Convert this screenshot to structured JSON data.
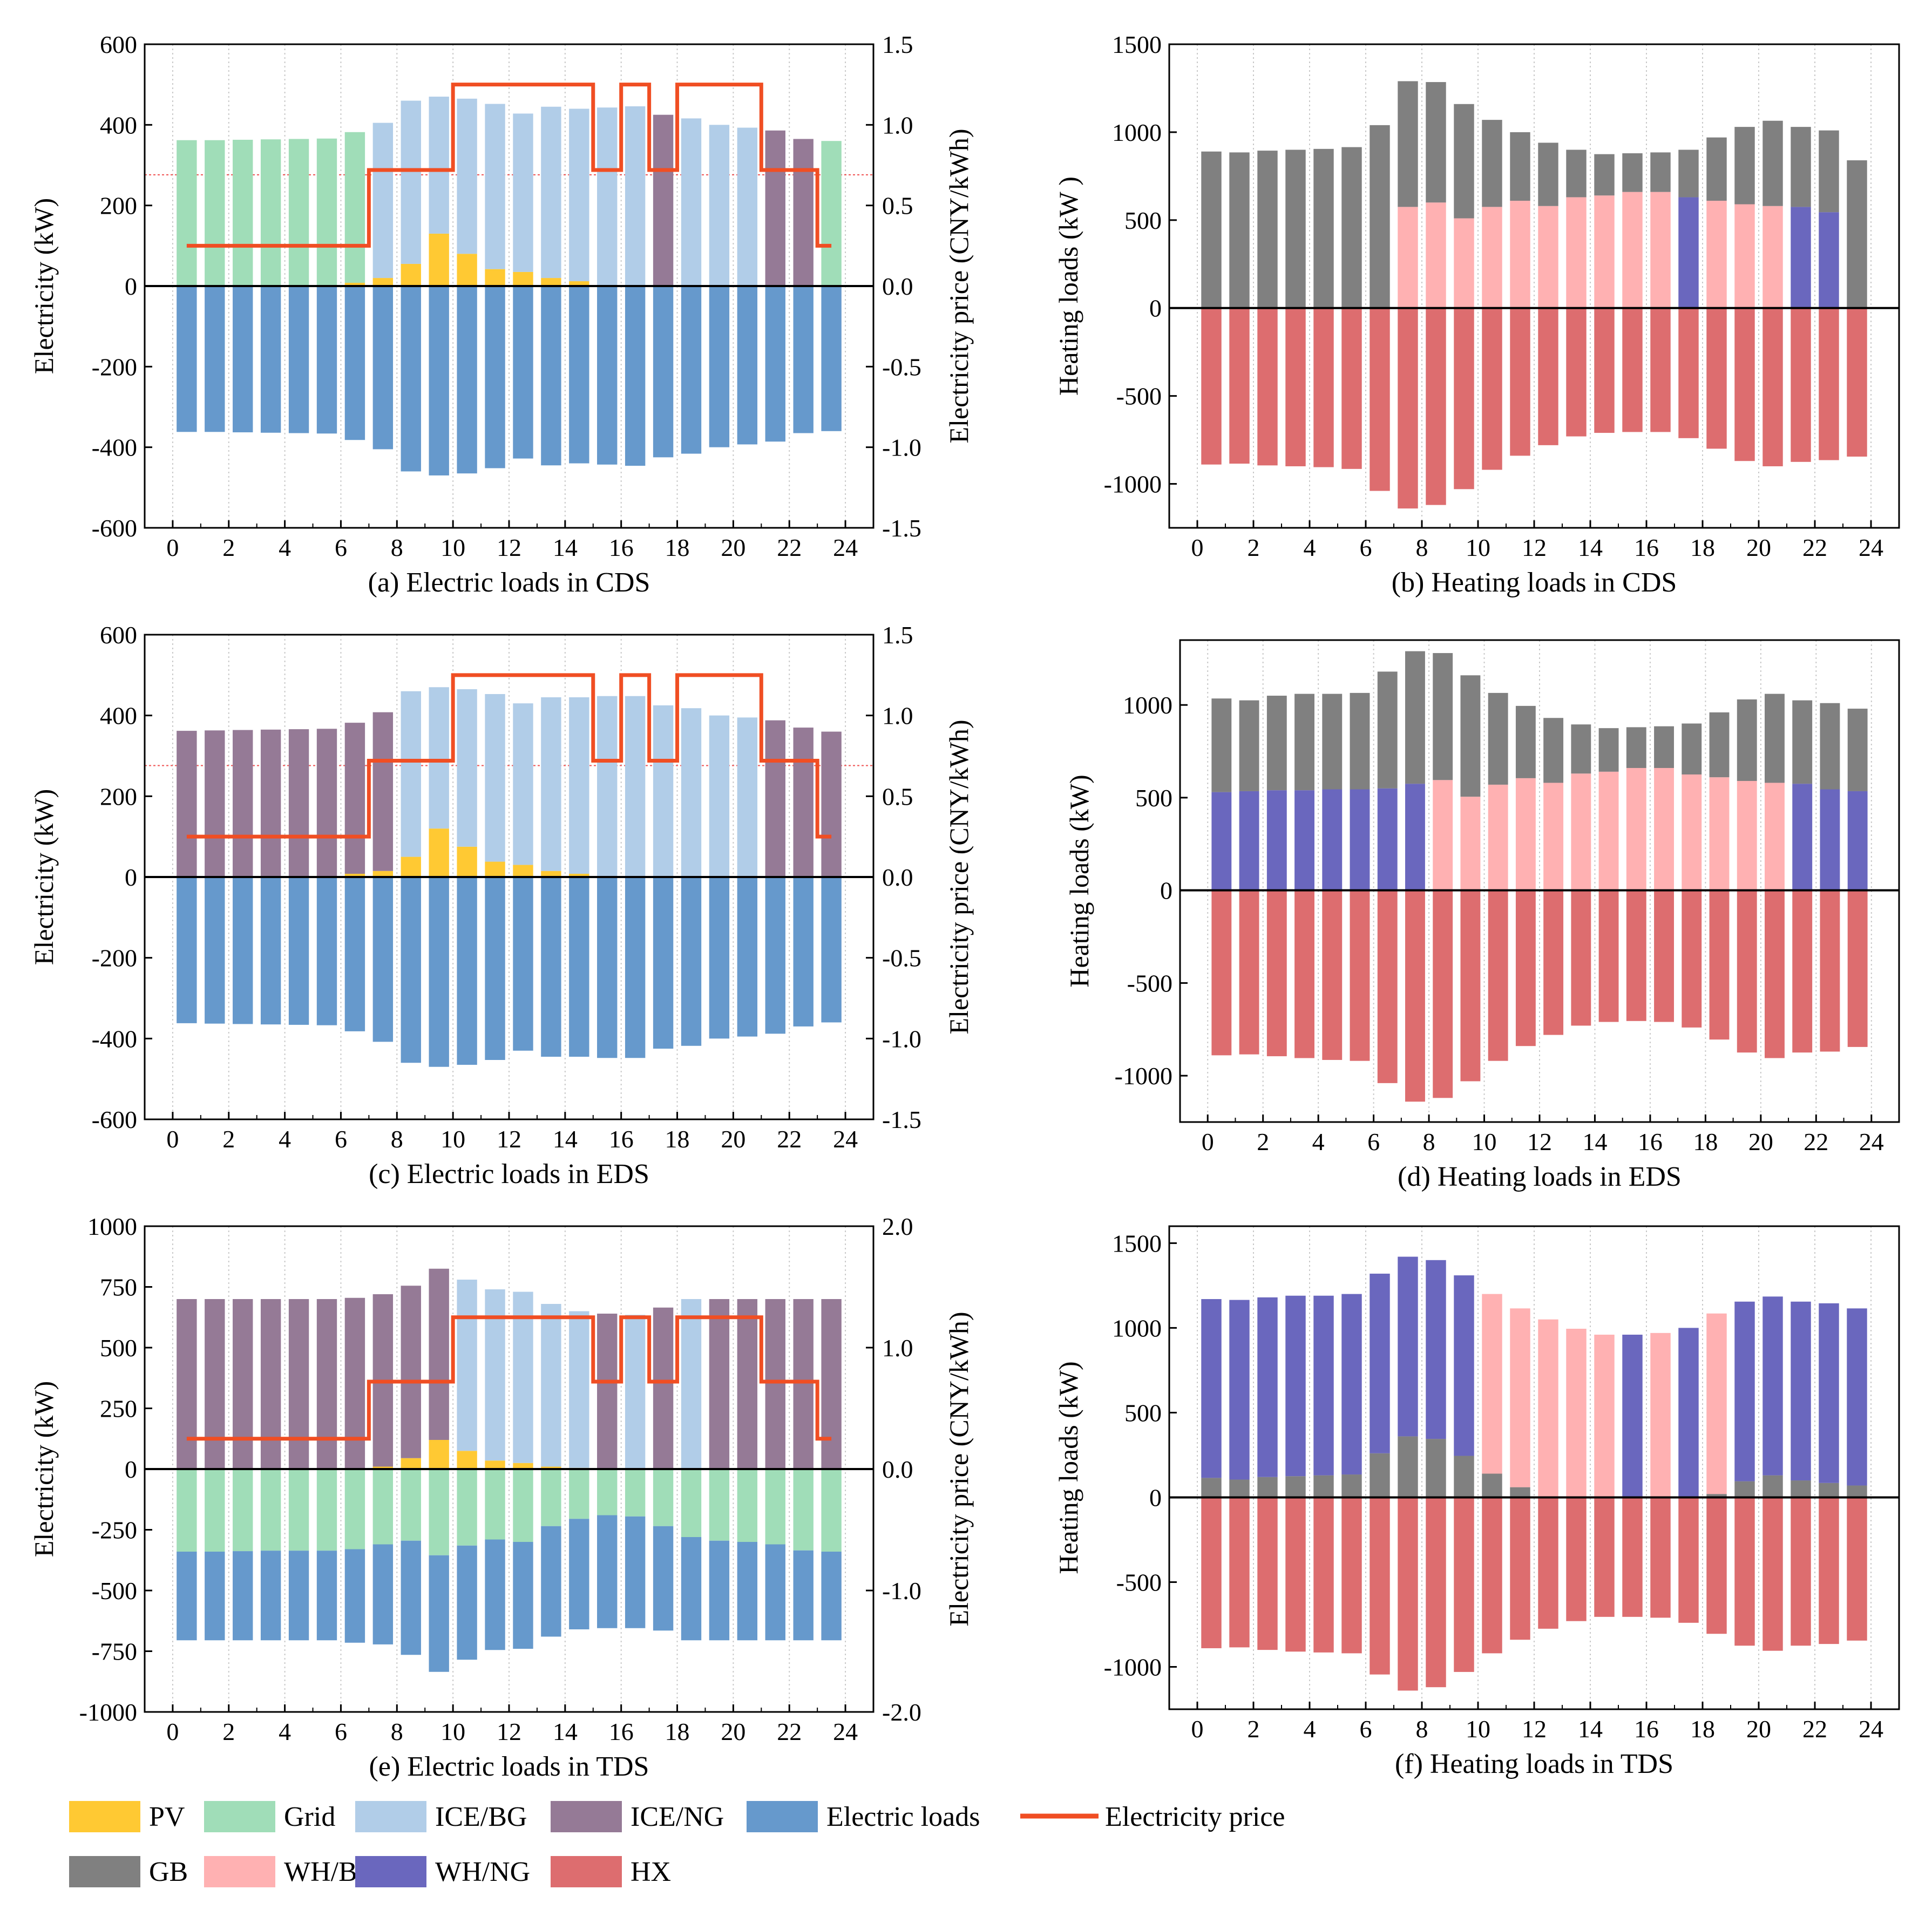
{
  "colors": {
    "PV": "#FFC933",
    "Grid": "#A0DDB8",
    "ICE/BG": "#B1CDE8",
    "ICE/NG": "#957A96",
    "Electric loads": "#6699CC",
    "Electricity price": "#F04E23",
    "GB": "#808080",
    "WH/BG": "#FFB1B2",
    "WH/NG": "#6A67BE",
    "HX": "#DD6D6F"
  },
  "legend": {
    "row1": [
      "PV",
      "Grid",
      "ICE/BG",
      "ICE/NG",
      "Electric loads",
      "Electricity price"
    ],
    "row2": [
      "GB",
      "WH/BG",
      "WH/NG",
      "HX"
    ]
  },
  "chart_data": [
    {
      "id": "a",
      "type": "bar",
      "caption": "(a) Electric loads in CDS",
      "ylabel": "Electricity (kW)",
      "y2label": "Electricity price (CNY/kWh)",
      "ylim": [
        -600,
        600
      ],
      "yticks": [
        "600",
        "400",
        "200",
        "0",
        "-200",
        "-400",
        "-600"
      ],
      "y2lim": [
        -1.5,
        1.5
      ],
      "y2ticks": [
        "1.5",
        "1.0",
        "0.5",
        "0.0",
        "-0.5",
        "-1.0",
        "-1.5"
      ],
      "xlim": [
        -1,
        25
      ],
      "xticks": [
        "0",
        "2",
        "4",
        "6",
        "8",
        "10",
        "12",
        "14",
        "16",
        "18",
        "20",
        "22",
        "24"
      ],
      "ref_y2": 0.69,
      "price": [
        0.25,
        0.25,
        0.25,
        0.25,
        0.25,
        0.25,
        0.25,
        0.72,
        0.72,
        0.72,
        1.25,
        1.25,
        1.25,
        1.25,
        1.25,
        0.72,
        1.25,
        0.72,
        1.25,
        1.25,
        1.25,
        0.72,
        0.72,
        0.25
      ],
      "series": [
        {
          "name": "PV",
          "values": [
            0,
            0,
            0,
            0,
            0,
            0,
            8,
            20,
            55,
            130,
            80,
            42,
            35,
            20,
            12,
            0,
            0,
            0,
            0,
            0,
            0,
            0,
            0,
            0
          ]
        },
        {
          "name": "Grid",
          "values": [
            362,
            362,
            363,
            364,
            365,
            366,
            374,
            0,
            0,
            0,
            0,
            0,
            0,
            0,
            0,
            0,
            0,
            0,
            0,
            0,
            0,
            0,
            0,
            360
          ]
        },
        {
          "name": "ICE/BG",
          "values": [
            0,
            0,
            0,
            0,
            0,
            0,
            0,
            385,
            405,
            340,
            385,
            410,
            393,
            425,
            428,
            443,
            446,
            0,
            416,
            400,
            393,
            0,
            0,
            0
          ]
        },
        {
          "name": "ICE/NG",
          "values": [
            0,
            0,
            0,
            0,
            0,
            0,
            0,
            0,
            0,
            0,
            0,
            0,
            0,
            0,
            0,
            0,
            0,
            425,
            0,
            0,
            0,
            386,
            365,
            0
          ]
        },
        {
          "name": "Electric loads",
          "values": [
            -362,
            -362,
            -363,
            -364,
            -365,
            -366,
            -382,
            -405,
            -460,
            -470,
            -465,
            -452,
            -428,
            -445,
            -440,
            -443,
            -446,
            -425,
            -416,
            -400,
            -393,
            -386,
            -365,
            -360
          ]
        }
      ]
    },
    {
      "id": "b",
      "type": "bar",
      "caption": "(b) Heating loads in CDS",
      "ylabel": "Heating loads (kW )",
      "ylim": [
        -1250,
        1500
      ],
      "yticks": [
        "1500",
        "1000",
        "500",
        "0",
        "-500",
        "-1000"
      ],
      "ytick_values": [
        1500,
        1000,
        500,
        0,
        -500,
        -1000
      ],
      "xlim": [
        -1,
        25
      ],
      "xticks": [
        "0",
        "2",
        "4",
        "6",
        "8",
        "10",
        "12",
        "14",
        "16",
        "18",
        "20",
        "22",
        "24"
      ],
      "series": [
        {
          "name": "WH/BG",
          "values": [
            0,
            0,
            0,
            0,
            0,
            0,
            0,
            575,
            600,
            510,
            575,
            610,
            580,
            630,
            640,
            660,
            660,
            0,
            610,
            590,
            580,
            0,
            0,
            0
          ]
        },
        {
          "name": "WH/NG",
          "values": [
            0,
            0,
            0,
            0,
            0,
            0,
            0,
            0,
            0,
            0,
            0,
            0,
            0,
            0,
            0,
            0,
            0,
            630,
            0,
            0,
            0,
            575,
            545,
            0
          ]
        },
        {
          "name": "GB",
          "values": [
            890,
            885,
            895,
            900,
            905,
            915,
            1040,
            715,
            685,
            650,
            495,
            390,
            360,
            270,
            235,
            220,
            225,
            270,
            360,
            440,
            485,
            455,
            465,
            840
          ]
        },
        {
          "name": "HX",
          "values": [
            -890,
            -885,
            -895,
            -900,
            -905,
            -915,
            -1040,
            -1140,
            -1120,
            -1030,
            -920,
            -840,
            -780,
            -730,
            -710,
            -705,
            -705,
            -740,
            -800,
            -870,
            -900,
            -875,
            -865,
            -845
          ]
        }
      ]
    },
    {
      "id": "c",
      "type": "bar",
      "caption": "(c) Electric loads in EDS",
      "ylabel": "Electricity (kW)",
      "y2label": "Electricity price (CNY/kWh)",
      "ylim": [
        -600,
        600
      ],
      "yticks": [
        "600",
        "400",
        "200",
        "0",
        "-200",
        "-400",
        "-600"
      ],
      "y2lim": [
        -1.5,
        1.5
      ],
      "y2ticks": [
        "1.5",
        "1.0",
        "0.5",
        "0.0",
        "-0.5",
        "-1.0",
        "-1.5"
      ],
      "xlim": [
        -1,
        25
      ],
      "xticks": [
        "0",
        "2",
        "4",
        "6",
        "8",
        "10",
        "12",
        "14",
        "16",
        "18",
        "20",
        "22",
        "24"
      ],
      "ref_y2": 0.69,
      "price": [
        0.25,
        0.25,
        0.25,
        0.25,
        0.25,
        0.25,
        0.25,
        0.72,
        0.72,
        0.72,
        1.25,
        1.25,
        1.25,
        1.25,
        1.25,
        0.72,
        1.25,
        0.72,
        1.25,
        1.25,
        1.25,
        0.72,
        0.72,
        0.25
      ],
      "series": [
        {
          "name": "PV",
          "values": [
            0,
            0,
            0,
            0,
            0,
            0,
            8,
            15,
            50,
            120,
            75,
            38,
            30,
            15,
            8,
            0,
            0,
            0,
            0,
            0,
            0,
            0,
            0,
            0
          ]
        },
        {
          "name": "ICE/BG",
          "values": [
            0,
            0,
            0,
            0,
            0,
            0,
            0,
            0,
            410,
            350,
            390,
            415,
            400,
            430,
            437,
            448,
            448,
            425,
            418,
            400,
            395,
            0,
            0,
            0
          ]
        },
        {
          "name": "ICE/NG",
          "values": [
            362,
            363,
            364,
            365,
            366,
            367,
            374,
            393,
            0,
            0,
            0,
            0,
            0,
            0,
            0,
            0,
            0,
            0,
            0,
            0,
            0,
            388,
            370,
            360
          ]
        },
        {
          "name": "Electric loads",
          "values": [
            -362,
            -363,
            -364,
            -365,
            -366,
            -367,
            -382,
            -408,
            -460,
            -470,
            -465,
            -453,
            -430,
            -445,
            -445,
            -448,
            -448,
            -425,
            -418,
            -400,
            -395,
            -388,
            -370,
            -360
          ]
        }
      ]
    },
    {
      "id": "d",
      "type": "bar",
      "caption": "(d) Heating loads in EDS",
      "ylabel": "Heating loads (kW)",
      "ylim": [
        -1250,
        1350
      ],
      "yticks": [
        "1000",
        "500",
        "0",
        "-500",
        "-1000"
      ],
      "ytick_values": [
        1000,
        500,
        0,
        -500,
        -1000
      ],
      "xlim": [
        -1,
        25
      ],
      "xticks": [
        "0",
        "2",
        "4",
        "6",
        "8",
        "10",
        "12",
        "14",
        "16",
        "18",
        "20",
        "22",
        "24"
      ],
      "series": [
        {
          "name": "WH/NG",
          "values": [
            530,
            535,
            540,
            540,
            545,
            545,
            550,
            575,
            0,
            0,
            0,
            0,
            0,
            0,
            0,
            0,
            0,
            0,
            0,
            0,
            0,
            575,
            545,
            535
          ]
        },
        {
          "name": "WH/BG",
          "values": [
            0,
            0,
            0,
            0,
            0,
            0,
            0,
            0,
            595,
            505,
            570,
            605,
            580,
            630,
            640,
            660,
            660,
            625,
            610,
            590,
            580,
            0,
            0,
            0
          ]
        },
        {
          "name": "GB",
          "values": [
            505,
            490,
            510,
            520,
            515,
            520,
            630,
            715,
            685,
            655,
            495,
            390,
            350,
            265,
            235,
            220,
            225,
            275,
            350,
            440,
            480,
            450,
            465,
            445
          ]
        },
        {
          "name": "HX",
          "values": [
            -890,
            -885,
            -895,
            -905,
            -915,
            -920,
            -1040,
            -1140,
            -1120,
            -1030,
            -920,
            -840,
            -780,
            -730,
            -710,
            -705,
            -710,
            -740,
            -805,
            -875,
            -905,
            -875,
            -870,
            -845
          ]
        }
      ]
    },
    {
      "id": "e",
      "type": "bar",
      "caption": "(e) Electric loads in TDS",
      "ylabel": "Electricity (kW)",
      "y2label": "Electricity price (CNY/kWh)",
      "ylim": [
        -1000,
        1000
      ],
      "yticks": [
        "1000",
        "750",
        "500",
        "250",
        "0",
        "-250",
        "-500",
        "-750",
        "-1000"
      ],
      "y2lim": [
        -2.0,
        2.0
      ],
      "y2ticks": [
        "2.0",
        "1.0",
        "0.0",
        "-1.0",
        "-2.0"
      ],
      "xlim": [
        -1,
        25
      ],
      "xticks": [
        "0",
        "2",
        "4",
        "6",
        "8",
        "10",
        "12",
        "14",
        "16",
        "18",
        "20",
        "22",
        "24"
      ],
      "price": [
        0.25,
        0.25,
        0.25,
        0.25,
        0.25,
        0.25,
        0.25,
        0.72,
        0.72,
        0.72,
        1.25,
        1.25,
        1.25,
        1.25,
        1.25,
        0.72,
        1.25,
        0.72,
        1.25,
        1.25,
        1.25,
        0.72,
        0.72,
        0.25
      ],
      "series": [
        {
          "name": "PV",
          "values": [
            0,
            0,
            0,
            0,
            0,
            0,
            0,
            10,
            45,
            120,
            75,
            35,
            25,
            10,
            5,
            0,
            0,
            0,
            0,
            0,
            0,
            0,
            0,
            0
          ]
        },
        {
          "name": "ICE/NG",
          "values": [
            700,
            700,
            700,
            700,
            700,
            700,
            705,
            710,
            710,
            705,
            0,
            0,
            0,
            0,
            0,
            640,
            0,
            665,
            0,
            700,
            700,
            700,
            700,
            700
          ]
        },
        {
          "name": "ICE/BG",
          "values": [
            0,
            0,
            0,
            0,
            0,
            0,
            0,
            0,
            0,
            0,
            705,
            705,
            705,
            670,
            645,
            0,
            635,
            0,
            700,
            0,
            0,
            0,
            0,
            0
          ]
        },
        {
          "name": "Grid",
          "values": [
            -340,
            -340,
            -338,
            -336,
            -336,
            -336,
            -330,
            -310,
            -295,
            -355,
            -315,
            -290,
            -300,
            -235,
            -205,
            -190,
            -195,
            -235,
            -280,
            -295,
            -300,
            -310,
            -335,
            -340
          ]
        },
        {
          "name": "Electric loads",
          "values": [
            -365,
            -365,
            -367,
            -369,
            -369,
            -369,
            -385,
            -412,
            -470,
            -480,
            -470,
            -455,
            -440,
            -455,
            -455,
            -465,
            -460,
            -430,
            -425,
            -410,
            -405,
            -395,
            -370,
            -365
          ]
        }
      ]
    },
    {
      "id": "f",
      "type": "bar",
      "caption": "(f) Heating loads in TDS",
      "ylabel": "Heating loads (kW)",
      "ylim": [
        -1250,
        1600
      ],
      "yticks": [
        "1500",
        "1000",
        "500",
        "0",
        "-500",
        "-1000"
      ],
      "ytick_values": [
        1500,
        1000,
        500,
        0,
        -500,
        -1000
      ],
      "xlim": [
        -1,
        25
      ],
      "xticks": [
        "0",
        "2",
        "4",
        "6",
        "8",
        "10",
        "12",
        "14",
        "16",
        "18",
        "20",
        "22",
        "24"
      ],
      "series": [
        {
          "name": "GB",
          "values": [
            115,
            105,
            120,
            125,
            130,
            135,
            260,
            360,
            345,
            245,
            140,
            60,
            0,
            0,
            0,
            0,
            0,
            0,
            20,
            95,
            130,
            100,
            85,
            70
          ]
        },
        {
          "name": "WH/NG",
          "values": [
            1055,
            1060,
            1060,
            1065,
            1060,
            1065,
            1060,
            1060,
            1055,
            1065,
            0,
            0,
            0,
            0,
            0,
            960,
            0,
            1000,
            0,
            1060,
            1055,
            1055,
            1060,
            1045
          ]
        },
        {
          "name": "WH/BG",
          "values": [
            0,
            0,
            0,
            0,
            0,
            0,
            0,
            0,
            0,
            0,
            1060,
            1055,
            1050,
            995,
            960,
            0,
            970,
            0,
            1065,
            0,
            0,
            0,
            0,
            0
          ]
        },
        {
          "name": "HX",
          "values": [
            -890,
            -885,
            -900,
            -910,
            -915,
            -920,
            -1045,
            -1140,
            -1120,
            -1030,
            -920,
            -840,
            -775,
            -730,
            -705,
            -705,
            -710,
            -740,
            -805,
            -875,
            -905,
            -875,
            -865,
            -845
          ]
        }
      ]
    }
  ]
}
